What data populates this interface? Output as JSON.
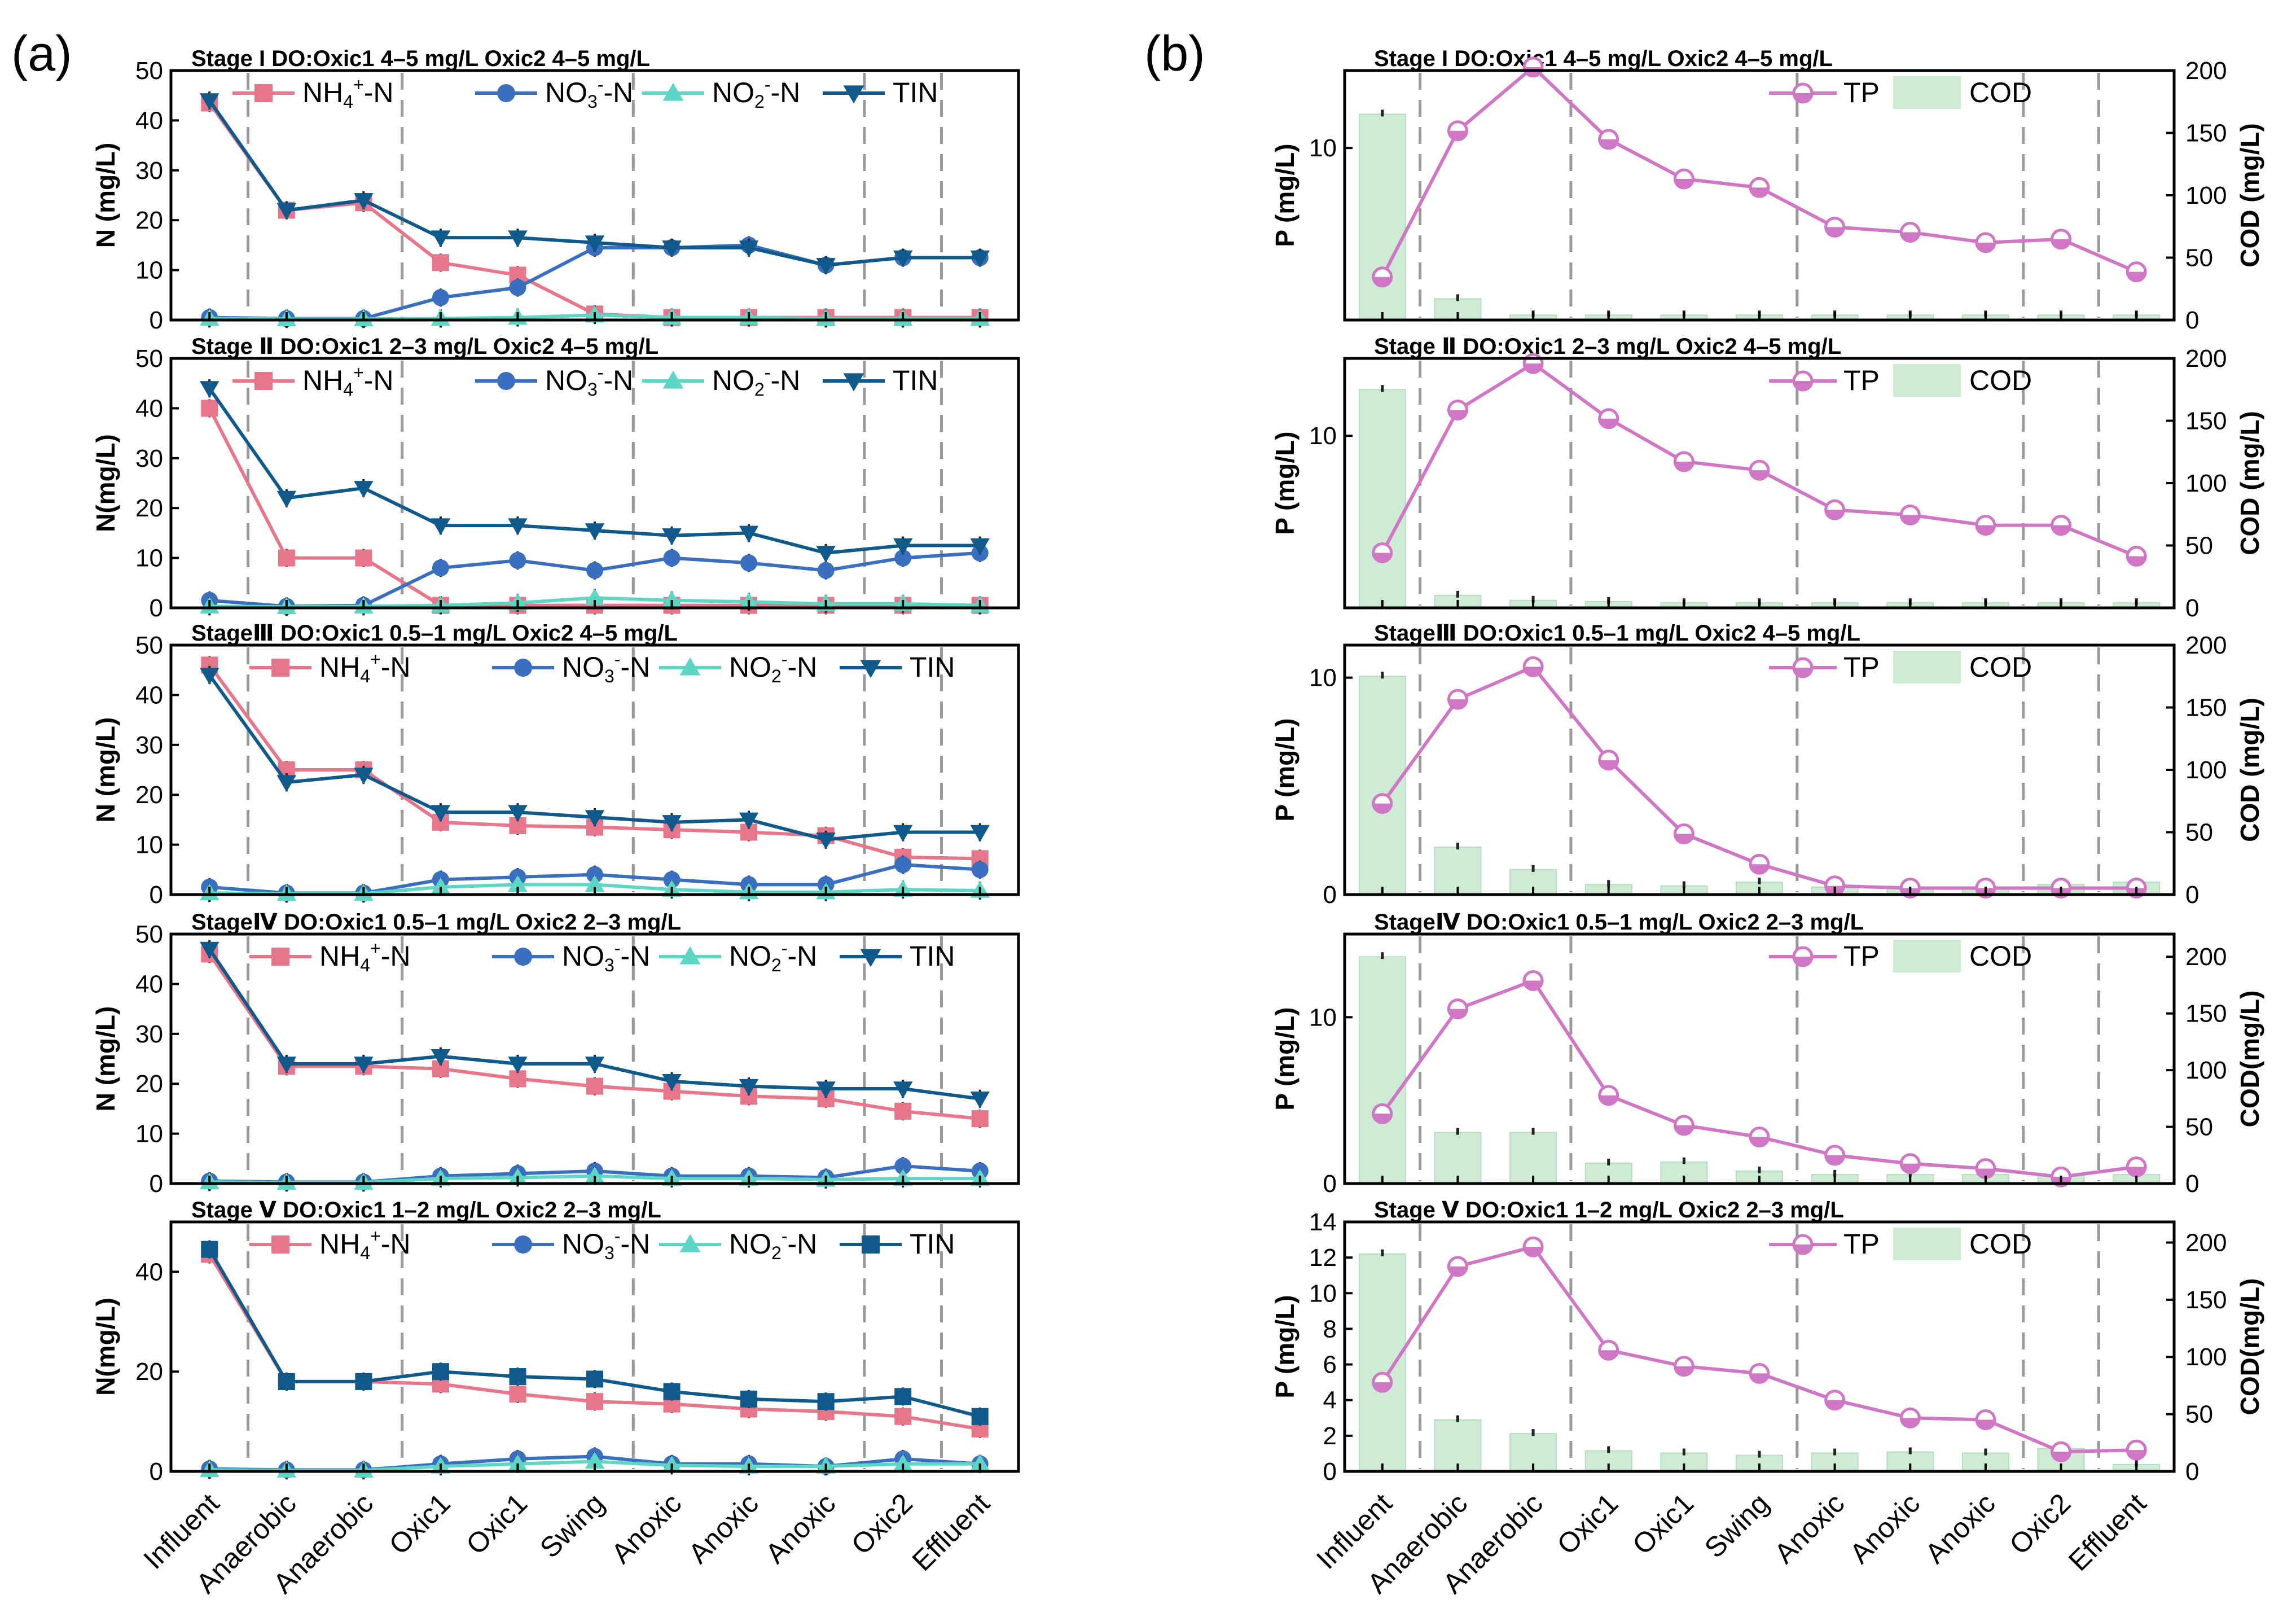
{
  "panel_labels": {
    "a": "(a)",
    "b": "(b)"
  },
  "colors": {
    "nh4": "#e8768a",
    "no3": "#3a6fbf",
    "no2": "#5ed6c4",
    "tin": "#0f5a8a",
    "tp": "#cf76c4",
    "cod": "#cdebd5",
    "cod_edge": "#b7dcc1",
    "divider": "#9a9a9a"
  },
  "categories": [
    "Influent",
    "Anaerobic",
    "Anaerobic",
    "Oxic1",
    "Oxic1",
    "Swing",
    "Anoxic",
    "Anoxic",
    "Anoxic",
    "Oxic2",
    "Effluent"
  ],
  "chart_data": [
    {
      "type": "line",
      "panel": "a",
      "stage": 1,
      "title": "Stage I DO:Oxic1 4–5 mg/L Oxic2 4–5 mg/L",
      "ylabel": "N (mg/L)",
      "ylim": [
        0,
        50
      ],
      "yticks": [
        "0",
        "10",
        "20",
        "30",
        "40",
        "50"
      ],
      "series": [
        {
          "name": "NH4+-N",
          "legend_main": "NH",
          "legend_sub": "4",
          "legend_sup": "+",
          "legend_tail": "-N",
          "values": [
            43.5,
            22,
            23.5,
            11.5,
            9,
            1.2,
            0.5,
            0.5,
            0.5,
            0.5,
            0.5
          ]
        },
        {
          "name": "NO3--N",
          "legend_main": "NO",
          "legend_sub": "3",
          "legend_sup": "-",
          "legend_tail": "-N",
          "values": [
            0.5,
            0.3,
            0.3,
            4.5,
            6.5,
            14.5,
            14.5,
            15,
            11,
            12.5,
            12.5
          ]
        },
        {
          "name": "NO2--N",
          "legend_main": "NO",
          "legend_sub": "2",
          "legend_sup": "-",
          "legend_tail": "-N",
          "values": [
            0.3,
            0.2,
            0.2,
            0.3,
            0.5,
            1,
            0.5,
            0.5,
            0.3,
            0.3,
            0.3
          ]
        },
        {
          "name": "TIN",
          "legend_main": "TIN",
          "legend_sub": "",
          "legend_sup": "",
          "legend_tail": "",
          "values": [
            44,
            22,
            24,
            16.5,
            16.5,
            15.5,
            14.5,
            14.5,
            11,
            12.5,
            12.5
          ]
        }
      ]
    },
    {
      "type": "line",
      "panel": "a",
      "stage": 2,
      "title": "Stage Ⅱ DO:Oxic1 2–3 mg/L Oxic2 4–5 mg/L",
      "ylabel": "N(mg/L)",
      "ylim": [
        0,
        50
      ],
      "yticks": [
        "0",
        "10",
        "20",
        "30",
        "40",
        "50"
      ],
      "series": [
        {
          "name": "NH4+-N",
          "legend_main": "NH",
          "legend_sub": "4",
          "legend_sup": "+",
          "legend_tail": "-N",
          "values": [
            40,
            10,
            10,
            0.5,
            0.5,
            0.5,
            0.5,
            0.5,
            0.5,
            0.5,
            0.5
          ]
        },
        {
          "name": "NO3--N",
          "legend_main": "NO",
          "legend_sub": "3",
          "legend_sup": "-",
          "legend_tail": "-N",
          "values": [
            1.5,
            0.3,
            0.5,
            8,
            9.5,
            7.5,
            10,
            9,
            7.5,
            10,
            11
          ]
        },
        {
          "name": "NO2--N",
          "legend_main": "NO",
          "legend_sub": "2",
          "legend_sup": "-",
          "legend_tail": "-N",
          "values": [
            0.3,
            0.2,
            0.3,
            0.5,
            1,
            2,
            1.5,
            1.2,
            0.8,
            0.8,
            0.5
          ]
        },
        {
          "name": "TIN",
          "legend_main": "TIN",
          "legend_sub": "",
          "legend_sup": "",
          "legend_tail": "",
          "values": [
            44,
            22,
            24,
            16.5,
            16.5,
            15.5,
            14.5,
            15,
            11,
            12.5,
            12.5
          ]
        }
      ]
    },
    {
      "type": "line",
      "panel": "a",
      "stage": 3,
      "title": "StageⅢ DO:Oxic1 0.5–1 mg/L Oxic2 4–5 mg/L",
      "ylabel": "N (mg/L)",
      "ylim": [
        0,
        50
      ],
      "yticks": [
        "0",
        "10",
        "20",
        "30",
        "40",
        "50"
      ],
      "series": [
        {
          "name": "NH4+-N",
          "legend_main": "NH",
          "legend_sub": "4",
          "legend_sup": "+",
          "legend_tail": "-N",
          "values": [
            46,
            25,
            25,
            14.5,
            13.8,
            13.5,
            13,
            12.5,
            11.8,
            7.5,
            7.2
          ]
        },
        {
          "name": "NO3--N",
          "legend_main": "NO",
          "legend_sub": "3",
          "legend_sup": "-",
          "legend_tail": "-N",
          "values": [
            1.5,
            0.3,
            0.3,
            3,
            3.5,
            4,
            3,
            2,
            2,
            6,
            5
          ]
        },
        {
          "name": "NO2--N",
          "legend_main": "NO",
          "legend_sub": "2",
          "legend_sup": "-",
          "legend_tail": "-N",
          "values": [
            0.3,
            0.2,
            0.2,
            1.5,
            2,
            2,
            1,
            0.5,
            0.5,
            1,
            0.8
          ]
        },
        {
          "name": "TIN",
          "legend_main": "TIN",
          "legend_sub": "",
          "legend_sup": "",
          "legend_tail": "",
          "values": [
            44,
            22.5,
            24,
            16.5,
            16.5,
            15.5,
            14.5,
            15,
            11,
            12.5,
            12.5
          ]
        }
      ]
    },
    {
      "type": "line",
      "panel": "a",
      "stage": 4,
      "title": "StageⅣ DO:Oxic1 0.5–1 mg/L Oxic2 2–3 mg/L",
      "ylabel": "N (mg/L)",
      "ylim": [
        0,
        50
      ],
      "yticks": [
        "0",
        "10",
        "20",
        "30",
        "40",
        "50"
      ],
      "series": [
        {
          "name": "NH4+-N",
          "legend_main": "NH",
          "legend_sub": "4",
          "legend_sup": "+",
          "legend_tail": "-N",
          "values": [
            46,
            23.5,
            23.5,
            23,
            21,
            19.5,
            18.5,
            17.5,
            17,
            14.5,
            13
          ]
        },
        {
          "name": "NO3--N",
          "legend_main": "NO",
          "legend_sub": "3",
          "legend_sup": "-",
          "legend_tail": "-N",
          "values": [
            0.5,
            0.3,
            0.3,
            1.5,
            2,
            2.5,
            1.5,
            1.5,
            1.2,
            3.5,
            2.5
          ]
        },
        {
          "name": "NO2--N",
          "legend_main": "NO",
          "legend_sub": "2",
          "legend_sup": "-",
          "legend_tail": "-N",
          "values": [
            0.3,
            0.2,
            0.2,
            1,
            1.2,
            1.5,
            1,
            1,
            0.8,
            1,
            1
          ]
        },
        {
          "name": "TIN",
          "legend_main": "TIN",
          "legend_sub": "",
          "legend_sup": "",
          "legend_tail": "",
          "values": [
            47,
            24,
            24,
            25.5,
            24,
            24,
            20.5,
            19.5,
            19,
            19,
            17
          ]
        }
      ]
    },
    {
      "type": "line",
      "panel": "a",
      "stage": 5,
      "title": "Stage Ⅴ DO:Oxic1 1–2 mg/L Oxic2 2–3 mg/L",
      "ylabel": "N(mg/L)",
      "ylim": [
        0,
        50
      ],
      "yticks": [
        "0",
        "20",
        "40"
      ],
      "series": [
        {
          "name": "NH4+-N",
          "legend_main": "NH",
          "legend_sub": "4",
          "legend_sup": "+",
          "legend_tail": "-N",
          "values": [
            43.5,
            18,
            18,
            17.5,
            15.5,
            14,
            13.5,
            12.5,
            12,
            11,
            8.5
          ]
        },
        {
          "name": "NO3--N",
          "legend_main": "NO",
          "legend_sub": "3",
          "legend_sup": "-",
          "legend_tail": "-N",
          "values": [
            0.5,
            0.3,
            0.3,
            1.5,
            2.5,
            3,
            1.5,
            1.5,
            1,
            2.5,
            1.5
          ]
        },
        {
          "name": "NO2--N",
          "legend_main": "NO",
          "legend_sub": "2",
          "legend_sup": "-",
          "legend_tail": "-N",
          "values": [
            0.3,
            0.2,
            0.2,
            1,
            1.5,
            2,
            1.2,
            1,
            1,
            1.5,
            1.5
          ]
        },
        {
          "name": "TIN",
          "legend_main": "TIN",
          "legend_sub": "",
          "legend_sup": "",
          "legend_tail": "",
          "values": [
            44.5,
            18,
            18,
            20,
            19,
            18.5,
            16,
            14.5,
            14,
            15,
            11
          ]
        }
      ]
    },
    {
      "type": "bar+line",
      "panel": "b",
      "stage": 1,
      "title": "Stage I DO:Oxic1 4–5 mg/L Oxic2 4–5 mg/L",
      "ylabel_left": "P (mg/L)",
      "ylabel_right": "COD (mg/L)",
      "ylim_left": [
        0,
        14.5
      ],
      "yticks_left": [
        "10"
      ],
      "ylim_right": [
        0,
        200
      ],
      "yticks_right": [
        "0",
        "50",
        "100",
        "150",
        "200"
      ],
      "legend": {
        "tp": "TP",
        "cod": "COD"
      },
      "tp": [
        2.5,
        11,
        14.7,
        10.5,
        8.2,
        7.7,
        5.4,
        5.1,
        4.5,
        4.7,
        2.8
      ],
      "cod": [
        165,
        17,
        4,
        4,
        4,
        4,
        4,
        4,
        4,
        4,
        4
      ]
    },
    {
      "type": "bar+line",
      "panel": "b",
      "stage": 2,
      "title": "Stage Ⅱ DO:Oxic1 2–3 mg/L Oxic2 4–5 mg/L",
      "ylabel_left": "P (mg/L)",
      "ylabel_right": "COD (mg/L)",
      "ylim_left": [
        0,
        14.5
      ],
      "yticks_left": [
        "10"
      ],
      "ylim_right": [
        0,
        200
      ],
      "yticks_right": [
        "0",
        "50",
        "100",
        "150",
        "200"
      ],
      "legend": {
        "tp": "TP",
        "cod": "COD"
      },
      "tp": [
        3.2,
        11.5,
        14.2,
        11,
        8.5,
        8,
        5.7,
        5.4,
        4.8,
        4.8,
        3
      ],
      "cod": [
        175,
        10,
        6,
        5,
        4,
        4,
        4,
        4,
        4,
        4,
        4
      ]
    },
    {
      "type": "bar+line",
      "panel": "b",
      "stage": 3,
      "title": "StageⅢ DO:Oxic1 0.5–1 mg/L Oxic2 4–5 mg/L",
      "ylabel_left": "P (mg/L)",
      "ylabel_right": "COD (mg/L)",
      "ylim_left": [
        0,
        11.5
      ],
      "yticks_left": [
        "0",
        "10"
      ],
      "ylim_right": [
        0,
        200
      ],
      "yticks_right": [
        "0",
        "50",
        "100",
        "150",
        "200"
      ],
      "legend": {
        "tp": "TP",
        "cod": "COD"
      },
      "tp": [
        4.2,
        9,
        10.5,
        6.2,
        2.8,
        1.4,
        0.4,
        0.3,
        0.3,
        0.3,
        0.3
      ],
      "cod": [
        175,
        38,
        20,
        8,
        7,
        10,
        6,
        6,
        6,
        8,
        10
      ]
    },
    {
      "type": "bar+line",
      "panel": "b",
      "stage": 4,
      "title": "StageⅣ DO:Oxic1 0.5–1 mg/L Oxic2 2–3 mg/L",
      "ylabel_left": "P (mg/L)",
      "ylabel_right": "COD(mg/L)",
      "ylim_left": [
        0,
        15
      ],
      "yticks_left": [
        "0",
        "10"
      ],
      "ylim_right": [
        0,
        220
      ],
      "yticks_right": [
        "0",
        "50",
        "100",
        "150",
        "200"
      ],
      "legend": {
        "tp": "TP",
        "cod": "COD"
      },
      "tp": [
        4.2,
        10.5,
        12.2,
        5.3,
        3.5,
        2.8,
        1.7,
        1.2,
        0.9,
        0.4,
        1
      ],
      "cod": [
        200,
        45,
        45,
        18,
        19,
        11,
        8,
        8,
        8,
        8,
        8
      ]
    },
    {
      "type": "bar+line",
      "panel": "b",
      "stage": 5,
      "title": "Stage Ⅴ DO:Oxic1 1–2 mg/L Oxic2 2–3 mg/L",
      "ylabel_left": "P (mg/L)",
      "ylabel_right": "COD(mg/L)",
      "ylim_left": [
        0,
        14
      ],
      "yticks_left": [
        "0",
        "2",
        "4",
        "6",
        "8",
        "10",
        "12",
        "14"
      ],
      "ylim_right": [
        0,
        218
      ],
      "yticks_right": [
        "0",
        "50",
        "100",
        "150",
        "200"
      ],
      "legend": {
        "tp": "TP",
        "cod": "COD"
      },
      "tp": [
        5,
        11.5,
        12.6,
        6.8,
        5.9,
        5.5,
        4,
        3,
        2.9,
        1.1,
        1.2
      ],
      "cod": [
        190,
        45,
        33,
        18,
        16,
        14,
        16,
        17,
        16,
        20,
        6
      ]
    }
  ]
}
